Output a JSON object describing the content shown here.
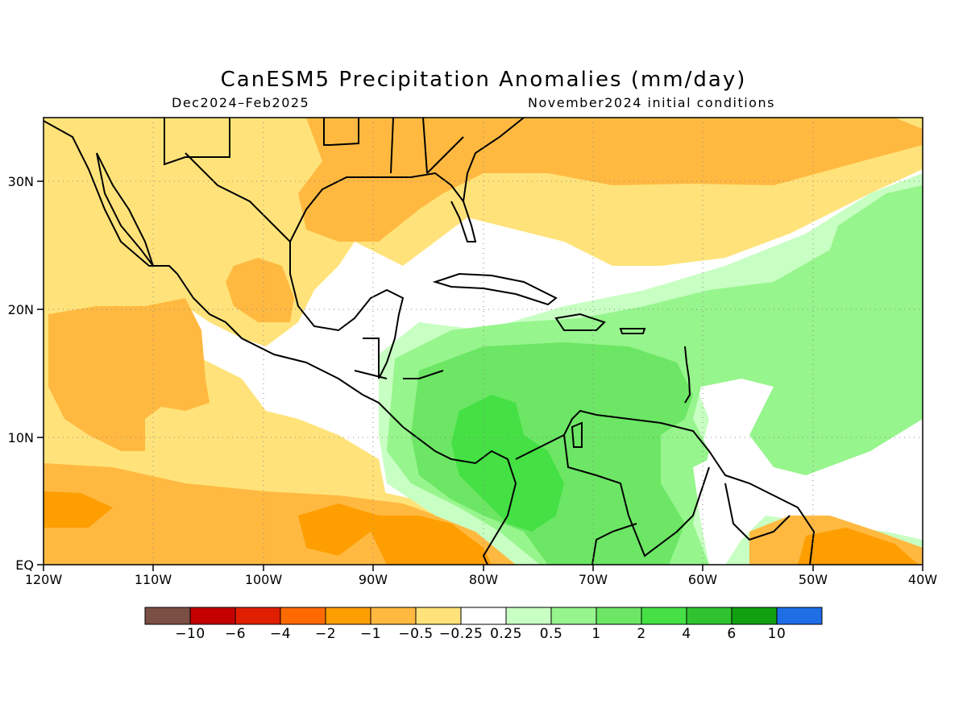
{
  "title": "CanESM5 Precipitation Anomalies (mm/day)",
  "period": "Dec2024–Feb2025",
  "init": "November2024 initial conditions",
  "lat_labels": [
    "30N",
    "20N",
    "10N",
    "EQ"
  ],
  "lon_labels": [
    "120W",
    "110W",
    "100W",
    "90W",
    "80W",
    "70W",
    "60W",
    "50W",
    "40W"
  ],
  "colorbar": {
    "colors": [
      "#7b4f44",
      "#c40000",
      "#e01e00",
      "#ff6a00",
      "#ff9e00",
      "#ffb941",
      "#ffe37a",
      "#ffffff",
      "#c8ffc3",
      "#96f58c",
      "#6ce664",
      "#44e044",
      "#2fc42f",
      "#10a010",
      "#1e6ee6"
    ],
    "labels": [
      "−10",
      "−6",
      "−4",
      "−2",
      "−1",
      "−0.5",
      "−0.25",
      "0.25",
      "0.5",
      "1",
      "2",
      "4",
      "6",
      "10"
    ]
  },
  "map": {
    "lon_range": [
      -120,
      -40
    ],
    "lat_range": [
      0,
      35
    ],
    "land_outline_color": "#000000",
    "grid_line_style": "dotted"
  }
}
